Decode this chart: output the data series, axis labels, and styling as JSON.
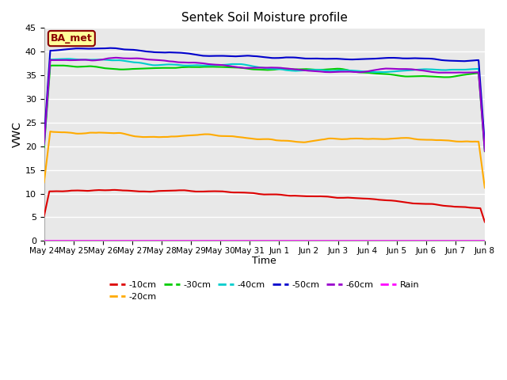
{
  "title": "Sentek Soil Moisture profile",
  "xlabel": "Time",
  "ylabel": "VWC",
  "annotation": "BA_met",
  "ylim": [
    0,
    45
  ],
  "xlim": [
    0,
    15
  ],
  "yticks": [
    0,
    5,
    10,
    15,
    20,
    25,
    30,
    35,
    40,
    45
  ],
  "xtick_labels": [
    "May 24",
    "May 25",
    "May 26",
    "May 27",
    "May 28",
    "May 29",
    "May 30",
    "May 31",
    "Jun 1",
    "Jun 2",
    "Jun 3",
    "Jun 4",
    "Jun 5",
    "Jun 6",
    "Jun 7",
    "Jun 8"
  ],
  "figure_bg_color": "#ffffff",
  "plot_bg_color": "#e8e8e8",
  "grid_color": "#ffffff",
  "series_colors": [
    "#dd0000",
    "#ffaa00",
    "#00cc00",
    "#00cccc",
    "#0000cc",
    "#9900cc",
    "#ff00ff"
  ],
  "legend_entries": [
    "-10cm",
    "-20cm",
    "-30cm",
    "-40cm",
    "-50cm",
    "-60cm",
    "Rain"
  ],
  "legend_colors": [
    "#dd0000",
    "#ffaa00",
    "#00cc00",
    "#00cccc",
    "#0000cc",
    "#9900cc",
    "#ff00ff"
  ],
  "annotation_fg": "#8b0000",
  "annotation_bg": "#ffff99",
  "annotation_edge": "#8b0000"
}
